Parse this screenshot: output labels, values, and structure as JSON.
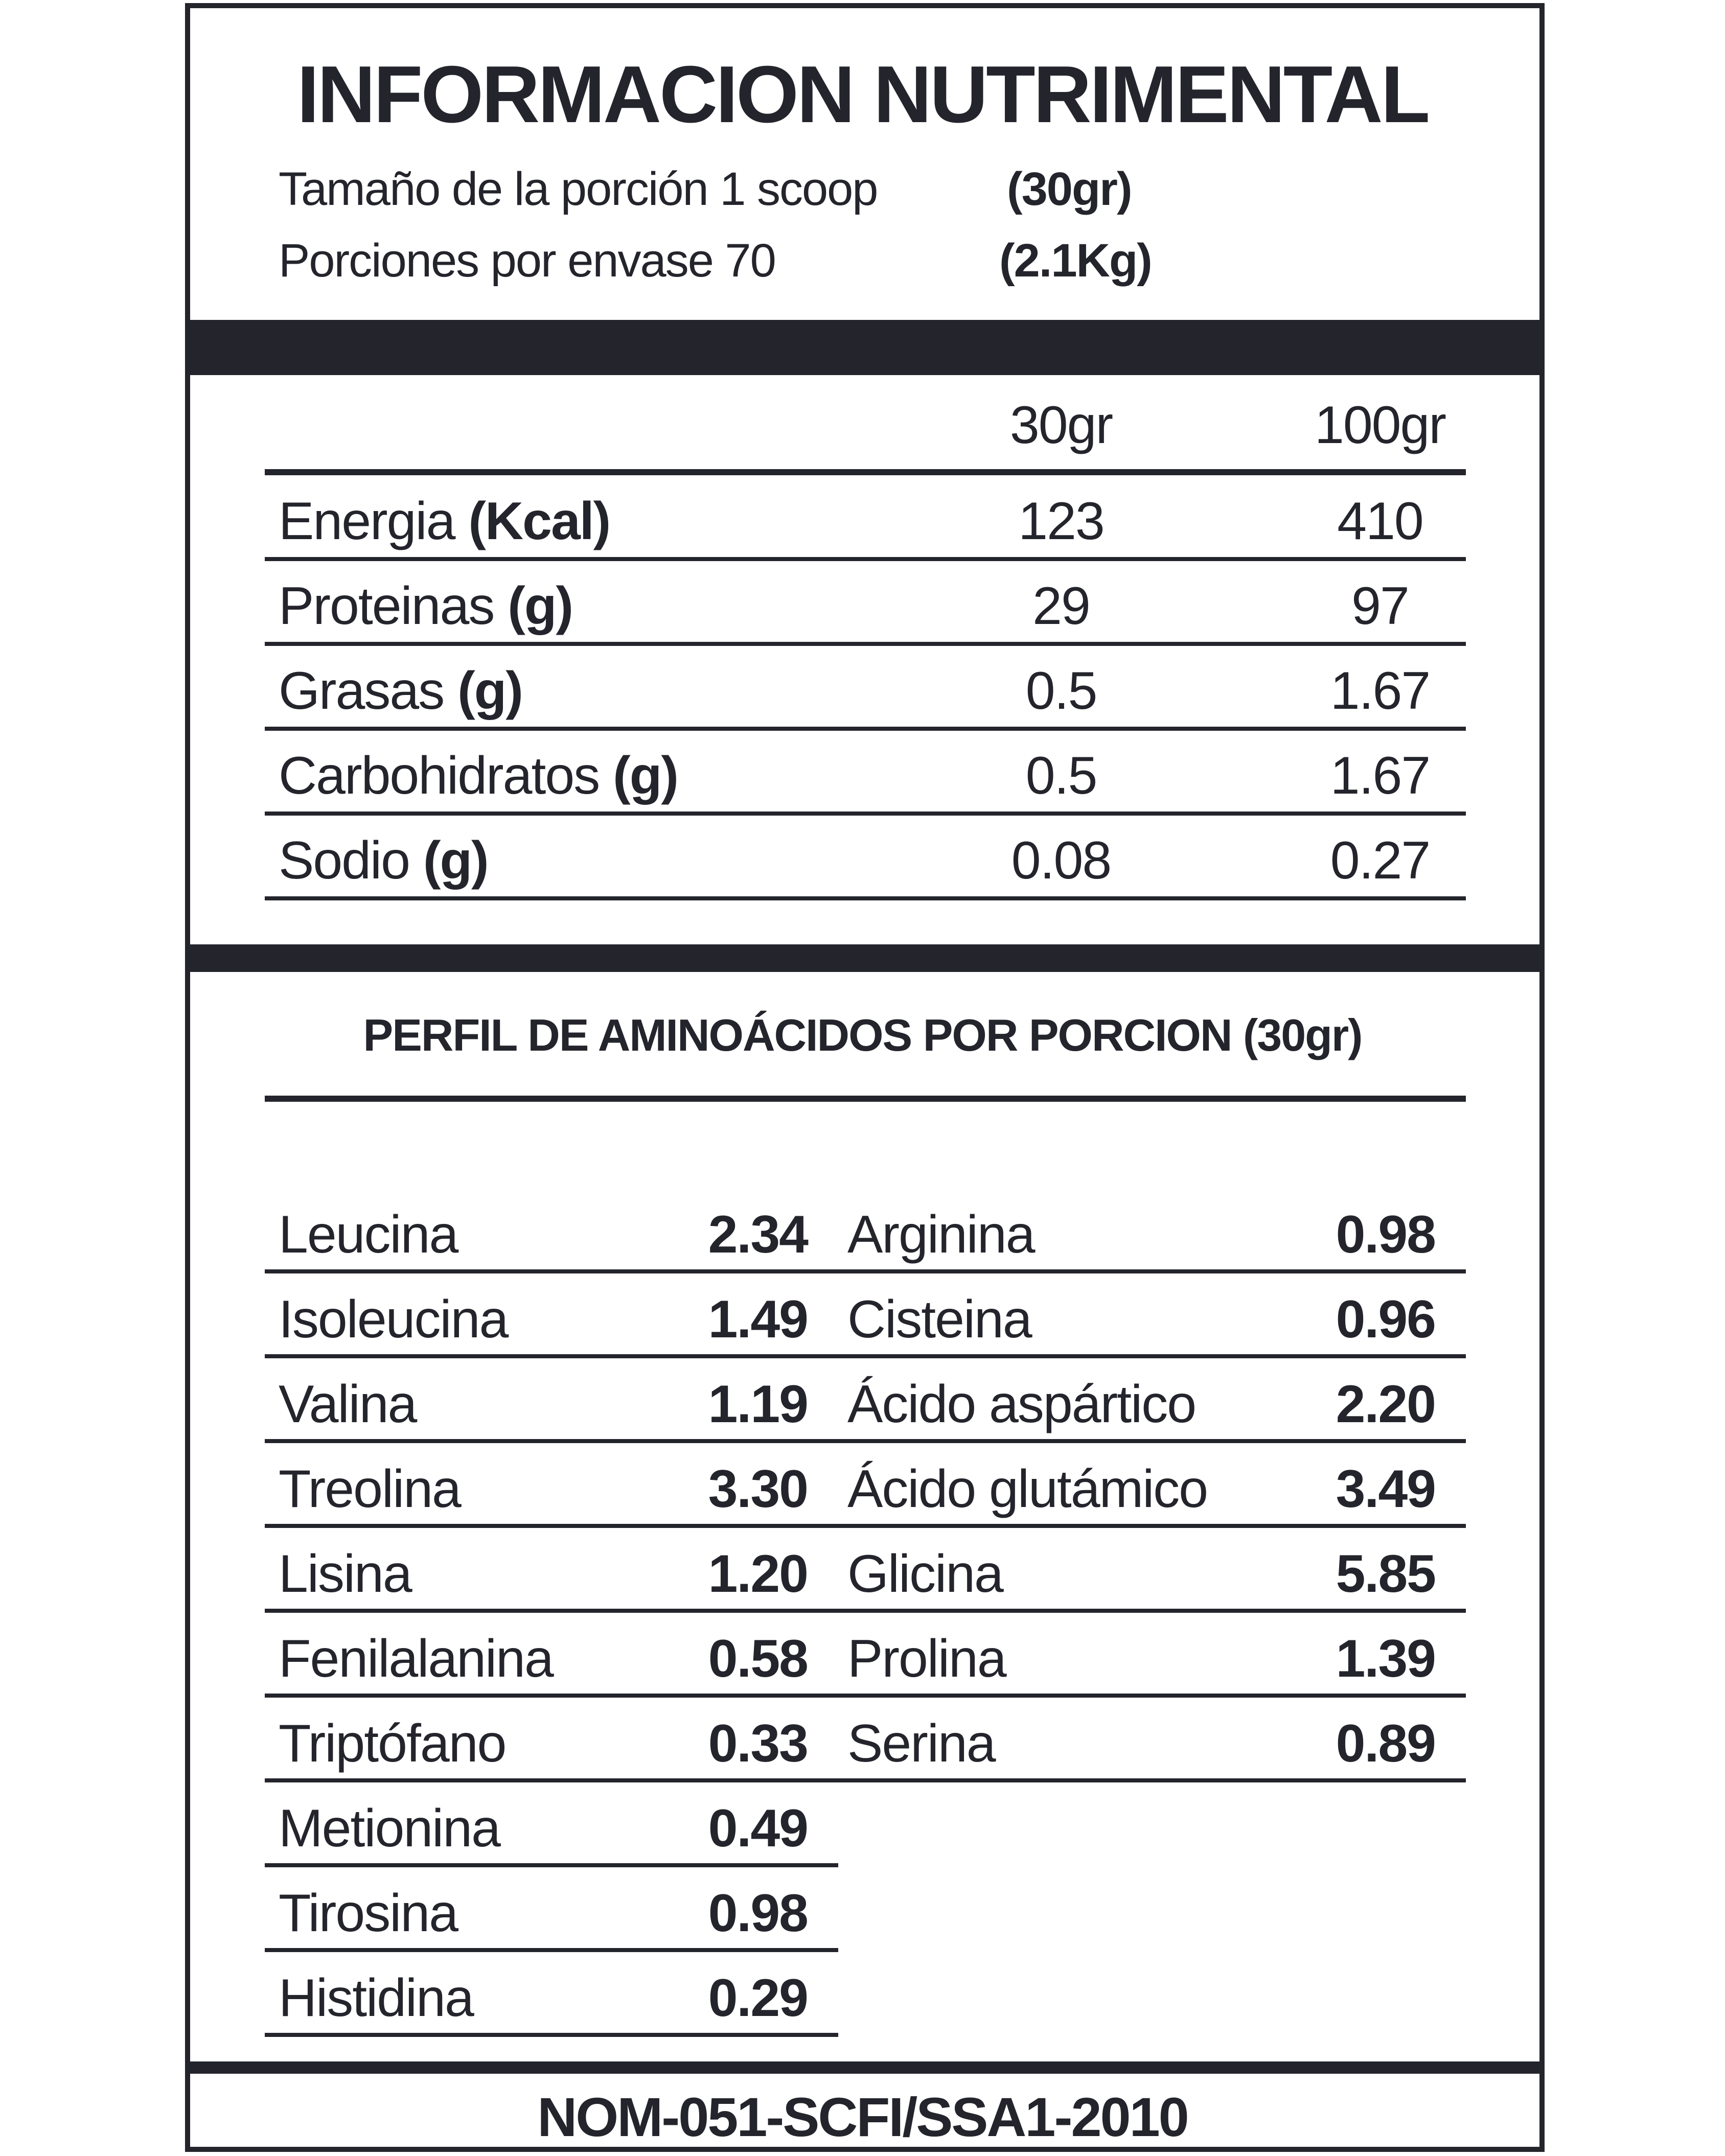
{
  "title": "INFORMACION NUTRIMENTAL",
  "serving": {
    "size_label": "Tamaño de la porción 1 scoop",
    "size_value": "(30gr)",
    "per_container_label": "Porciones por envase  70",
    "per_container_value": "(2.1Kg)"
  },
  "nutrition": {
    "columns": [
      "30gr",
      "100gr"
    ],
    "rows": [
      {
        "name": "Energia",
        "unit": "(Kcal)",
        "v30": "123",
        "v100": "410"
      },
      {
        "name": "Proteinas",
        "unit": "(g)",
        "v30": "29",
        "v100": "97"
      },
      {
        "name": "Grasas",
        "unit": "(g)",
        "v30": "0.5",
        "v100": "1.67"
      },
      {
        "name": "Carbohidratos",
        "unit": "(g)",
        "v30": "0.5",
        "v100": "1.67"
      },
      {
        "name": "Sodio",
        "unit": "(g)",
        "v30": "0.08",
        "v100": "0.27"
      }
    ]
  },
  "amino": {
    "heading": "PERFIL DE AMINOÁCIDOS POR PORCION (30gr)",
    "left": [
      {
        "name": "Leucina",
        "value": "2.34"
      },
      {
        "name": "Isoleucina",
        "value": "1.49"
      },
      {
        "name": "Valina",
        "value": "1.19"
      },
      {
        "name": "Treolina",
        "value": "3.30"
      },
      {
        "name": "Lisina",
        "value": "1.20"
      },
      {
        "name": "Fenilalanina",
        "value": "0.58"
      },
      {
        "name": "Triptófano",
        "value": "0.33"
      },
      {
        "name": "Metionina",
        "value": "0.49"
      },
      {
        "name": "Tirosina",
        "value": "0.98"
      },
      {
        "name": "Histidina",
        "value": "0.29"
      }
    ],
    "right": [
      {
        "name": "Arginina",
        "value": "0.98"
      },
      {
        "name": "Cisteina",
        "value": "0.96"
      },
      {
        "name": "Ácido aspártico",
        "value": "2.20"
      },
      {
        "name": "Ácido glutámico",
        "value": "3.49"
      },
      {
        "name": "Glicina",
        "value": "5.85"
      },
      {
        "name": "Prolina",
        "value": "1.39"
      },
      {
        "name": "Serina",
        "value": "0.89"
      }
    ]
  },
  "footer": "NOM-051-SCFI/SSA1-2010",
  "colors": {
    "ink": "#24252c",
    "background": "#ffffff"
  }
}
